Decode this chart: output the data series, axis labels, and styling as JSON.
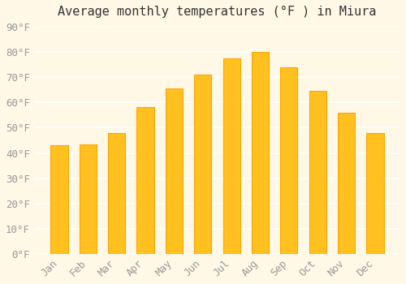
{
  "title": "Average monthly temperatures (°F ) in Miura",
  "months": [
    "Jan",
    "Feb",
    "Mar",
    "Apr",
    "May",
    "Jun",
    "Jul",
    "Aug",
    "Sep",
    "Oct",
    "Nov",
    "Dec"
  ],
  "values": [
    43,
    43.5,
    48,
    58,
    65.5,
    71,
    77.5,
    80,
    74,
    64.5,
    56,
    48
  ],
  "bar_color_face": "#FFC020",
  "bar_color_edge": "#FFA500",
  "background_color": "#FFF8E7",
  "grid_color": "#FFFFFF",
  "text_color": "#999999",
  "ylim": [
    0,
    90
  ],
  "yticks": [
    0,
    10,
    20,
    30,
    40,
    50,
    60,
    70,
    80,
    90
  ],
  "title_fontsize": 11,
  "tick_fontsize": 9
}
